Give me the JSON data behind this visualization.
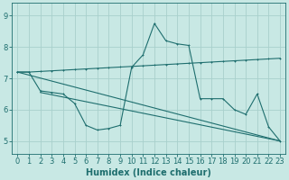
{
  "xlabel": "Humidex (Indice chaleur)",
  "bg_color": "#c8e8e4",
  "line_color": "#1e6e6e",
  "grid_color": "#a8d0cc",
  "xlim": [
    -0.5,
    23.5
  ],
  "ylim": [
    4.6,
    9.4
  ],
  "yticks": [
    5,
    6,
    7,
    8,
    9
  ],
  "xticks": [
    0,
    1,
    2,
    3,
    4,
    5,
    6,
    7,
    8,
    9,
    10,
    11,
    12,
    13,
    14,
    15,
    16,
    17,
    18,
    19,
    20,
    21,
    22,
    23
  ],
  "line_flat": {
    "x": [
      0,
      1,
      2,
      3,
      4,
      5,
      6,
      7,
      8,
      9,
      10,
      11,
      12,
      13,
      14,
      15,
      16,
      17,
      18,
      19,
      20,
      21,
      22,
      23
    ],
    "y": [
      7.2,
      7.2,
      7.22,
      7.24,
      7.26,
      7.28,
      7.3,
      7.32,
      7.34,
      7.36,
      7.38,
      7.4,
      7.42,
      7.44,
      7.46,
      7.48,
      7.5,
      7.52,
      7.54,
      7.56,
      7.58,
      7.6,
      7.62,
      7.64
    ]
  },
  "line_jagged": {
    "x": [
      0,
      1,
      2,
      3,
      4,
      5,
      6,
      7,
      8,
      9,
      10,
      11,
      12,
      13,
      14,
      15,
      16,
      17,
      18,
      19,
      20,
      21,
      22,
      23
    ],
    "y": [
      7.2,
      7.2,
      6.6,
      6.55,
      6.5,
      6.2,
      5.5,
      5.35,
      5.4,
      5.5,
      7.35,
      7.75,
      8.75,
      8.2,
      8.1,
      8.05,
      6.35,
      6.35,
      6.35,
      6.0,
      5.85,
      6.5,
      5.45,
      5.0
    ]
  },
  "line_diag1": {
    "x": [
      0,
      23
    ],
    "y": [
      7.2,
      5.0
    ]
  },
  "line_diag2": {
    "x": [
      2,
      23
    ],
    "y": [
      6.55,
      5.0
    ]
  },
  "xlabel_fontsize": 7,
  "tick_fontsize": 6
}
